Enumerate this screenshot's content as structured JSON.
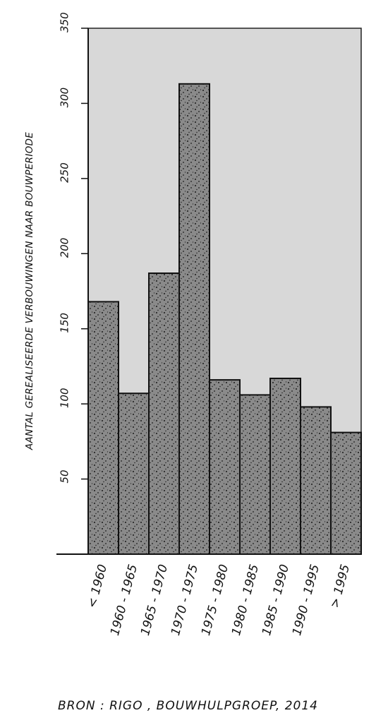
{
  "chart_data": {
    "type": "bar",
    "ylabel": "AANTAL GEREALISEERDE VERBOUWINGEN NAAR BOUWPERIODE",
    "xlabel": "",
    "title": "",
    "categories": [
      "< 1960",
      "1960 - 1965",
      "1965 - 1970",
      "1970 - 1975",
      "1975 - 1980",
      "1980 - 1985",
      "1985 - 1990",
      "1990 - 1995",
      "> 1995"
    ],
    "values": [
      168,
      107,
      187,
      313,
      116,
      106,
      117,
      98,
      81
    ],
    "ylim": [
      0,
      350
    ],
    "yticks": [
      "350",
      "300",
      "250",
      "200",
      "150",
      "100",
      "50"
    ],
    "grid": false,
    "colors": {
      "plot_bg": "#d8d8d8",
      "bar": "#8a8a8a",
      "stipple": "#1a1a1a",
      "ink": "#111111"
    }
  },
  "footer": {
    "source": "BRON : RIGO , BOUWHULPGROEP, 2014"
  }
}
